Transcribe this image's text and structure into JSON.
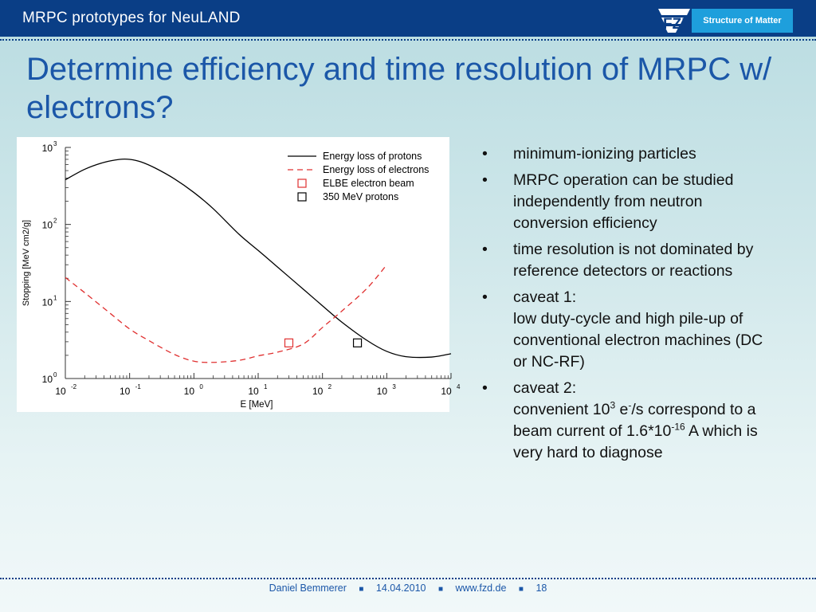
{
  "header": {
    "title": "MRPC prototypes for NeuLAND",
    "brand_badge": "Structure of Matter",
    "logo_text": "FZD"
  },
  "slide": {
    "title": "Determine efficiency and time resolution of MRPC w/ electrons?"
  },
  "bullets": {
    "b1": "minimum-ionizing particles",
    "b2": "MRPC operation can be studied independently from neutron conversion efficiency",
    "b3": "time resolution is not dominated by reference detectors or reactions",
    "b4_line1": "caveat 1:",
    "b4_line2": "low duty-cycle and high pile-up of conventional electron machines (DC or NC-RF)",
    "b5_line1": "caveat 2:",
    "b5_pre": "convenient 10",
    "b5_sup1": "3",
    "b5_mid1": " e",
    "b5_sup2": "-",
    "b5_mid2": "/s correspond to a beam current of 1.6*10",
    "b5_sup3": "-16",
    "b5_post": " A which is very hard to diagnose"
  },
  "footer": {
    "author": "Daniel Bemmerer",
    "sep": "■",
    "date": "14.04.2010",
    "url": "www.fzd.de",
    "page": "18"
  },
  "chart_data": {
    "type": "line",
    "xlabel": "E [MeV]",
    "ylabel": "Stopping [MeV cm2/g]",
    "x_scale": "log",
    "y_scale": "log",
    "xlim": [
      0.01,
      10000
    ],
    "ylim": [
      1,
      1000
    ],
    "x_ticks": [
      {
        "base": "10",
        "exp": "-2",
        "value": 0.01
      },
      {
        "base": "10",
        "exp": "-1",
        "value": 0.1
      },
      {
        "base": "10",
        "exp": "0",
        "value": 1
      },
      {
        "base": "10",
        "exp": "1",
        "value": 10
      },
      {
        "base": "10",
        "exp": "2",
        "value": 100
      },
      {
        "base": "10",
        "exp": "3",
        "value": 1000
      },
      {
        "base": "10",
        "exp": "4",
        "value": 10000
      }
    ],
    "y_ticks": [
      {
        "base": "10",
        "exp": "0",
        "value": 1
      },
      {
        "base": "10",
        "exp": "1",
        "value": 10
      },
      {
        "base": "10",
        "exp": "2",
        "value": 100
      },
      {
        "base": "10",
        "exp": "3",
        "value": 1000
      }
    ],
    "legend_position": "top-right",
    "series": [
      {
        "name": "Energy loss of protons",
        "style": "solid",
        "color": "#000000",
        "x": [
          0.01,
          0.02,
          0.04,
          0.07,
          0.1,
          0.15,
          0.25,
          0.5,
          1,
          2,
          5,
          10,
          20,
          50,
          100,
          200,
          500,
          1000,
          2000,
          5000,
          10000
        ],
        "y": [
          380,
          520,
          640,
          700,
          700,
          650,
          540,
          390,
          260,
          160,
          75,
          46,
          28,
          14.5,
          8.8,
          5.4,
          3.1,
          2.25,
          1.92,
          1.9,
          2.1
        ]
      },
      {
        "name": "Energy loss of electrons",
        "style": "dashed",
        "color": "#e03030",
        "x": [
          0.01,
          0.02,
          0.05,
          0.1,
          0.2,
          0.5,
          1,
          2,
          5,
          10,
          20,
          50,
          100,
          200,
          500,
          1000
        ],
        "y": [
          20.5,
          13,
          7,
          4.4,
          3.1,
          2.05,
          1.68,
          1.62,
          1.72,
          1.97,
          2.2,
          2.8,
          4.6,
          7.5,
          15,
          30
        ]
      },
      {
        "name": "ELBE electron beam",
        "style": "marker-square",
        "color": "#e03030",
        "x": [
          30
        ],
        "y": [
          2.9
        ]
      },
      {
        "name": "350 MeV protons",
        "style": "marker-square",
        "color": "#000000",
        "x": [
          350
        ],
        "y": [
          2.9
        ]
      }
    ]
  }
}
